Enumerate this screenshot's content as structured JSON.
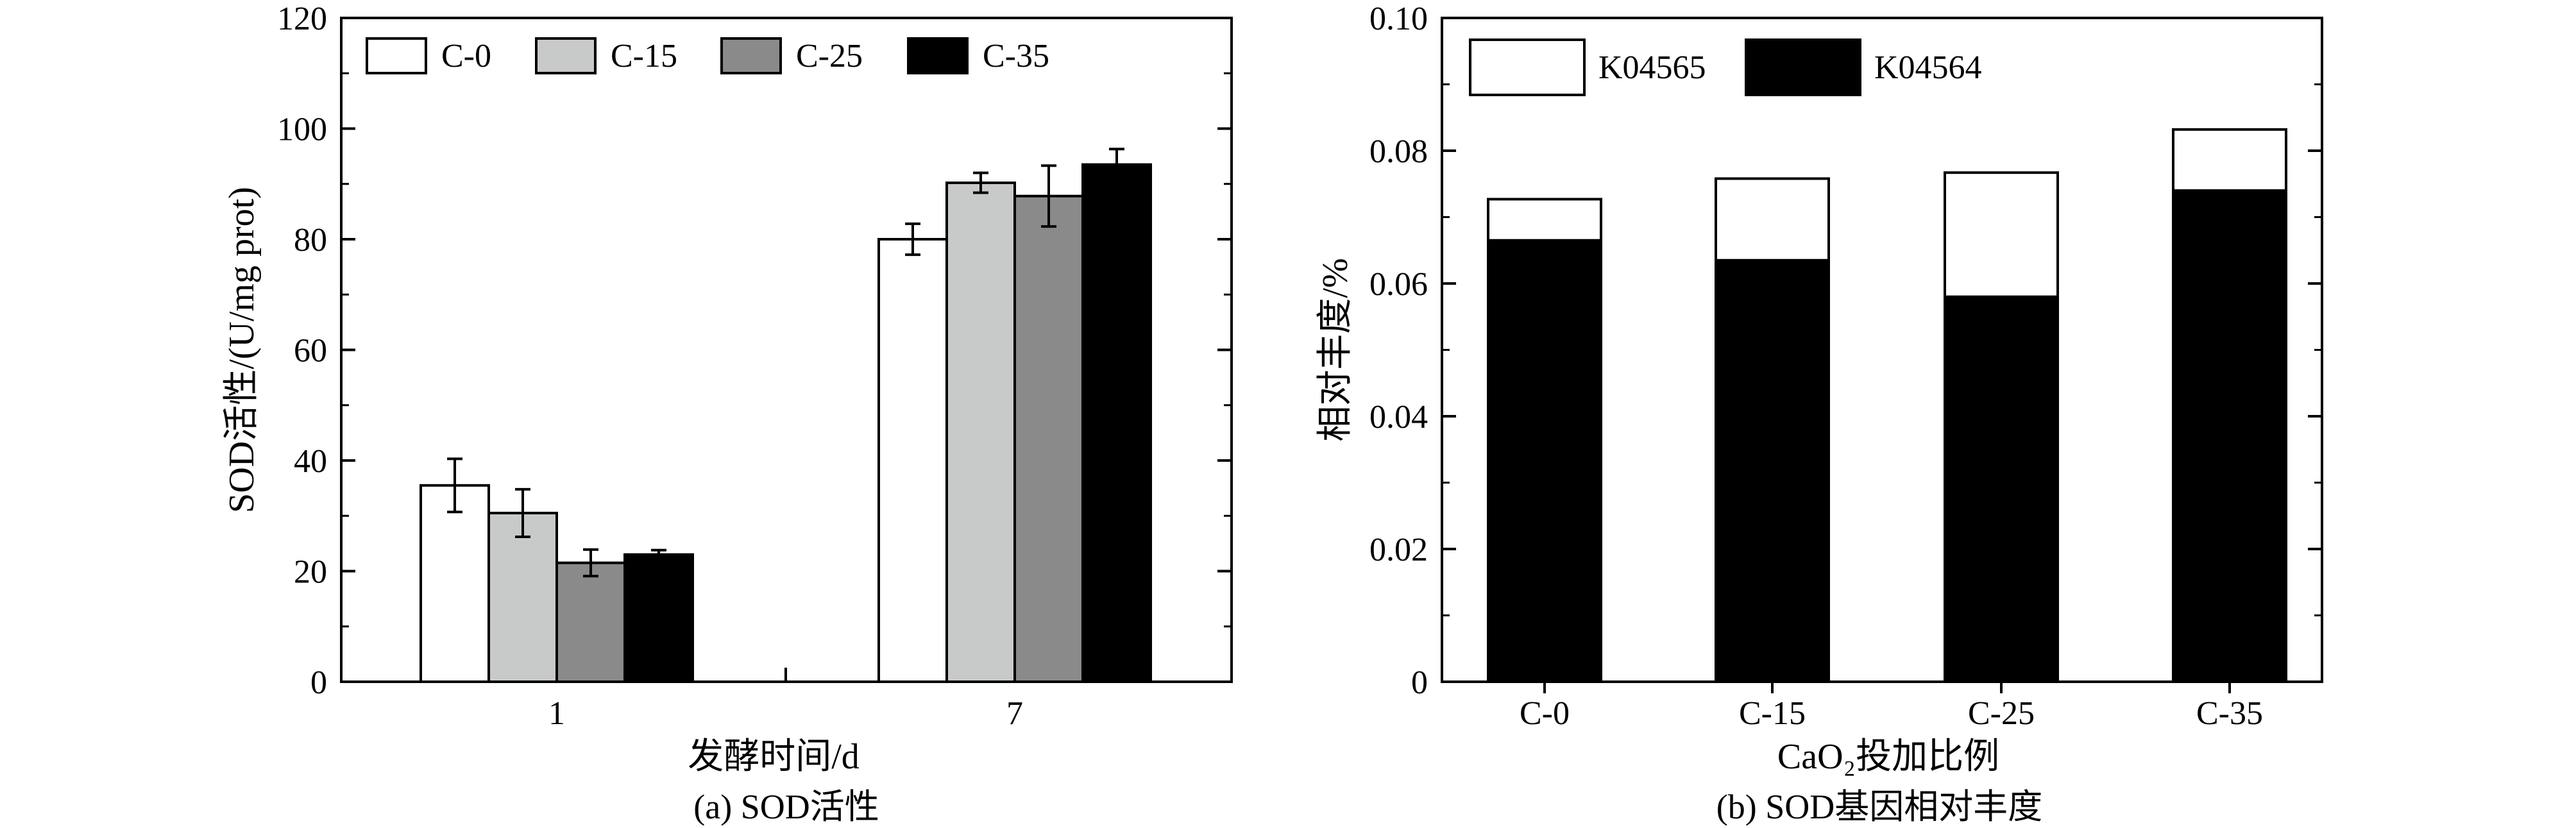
{
  "figure": {
    "left_caption": "(a) SOD活性",
    "right_caption": "(b) SOD基因相对丰度"
  },
  "chart_data": [
    {
      "type": "bar",
      "xlabel": "发酵时间/d",
      "ylabel": "SOD活性/(U/mg prot)",
      "categories": [
        "1",
        "7"
      ],
      "ylim": [
        0,
        120
      ],
      "yticks": [
        0,
        20,
        40,
        60,
        80,
        100,
        120
      ],
      "legend_position": "top-left",
      "series": [
        {
          "name": "C-0",
          "color": "#ffffff",
          "values": [
            35.5,
            80.0
          ],
          "errors": [
            4.8,
            2.8
          ]
        },
        {
          "name": "C-15",
          "color": "#c8c9c9",
          "values": [
            30.5,
            90.2
          ],
          "errors": [
            4.3,
            1.8
          ]
        },
        {
          "name": "C-25",
          "color": "#8a8a8a",
          "values": [
            21.5,
            87.8
          ],
          "errors": [
            2.4,
            5.5
          ]
        },
        {
          "name": "C-35",
          "color": "#000000",
          "values": [
            23.0,
            93.5
          ],
          "errors": [
            0.8,
            2.8
          ]
        }
      ]
    },
    {
      "type": "bar",
      "stacked": true,
      "xlabel": "CaO₂投加比例",
      "ylabel": "相对丰度/%",
      "categories": [
        "C-0",
        "C-15",
        "C-25",
        "C-35"
      ],
      "ylim": [
        0,
        0.1
      ],
      "yticks": [
        "0",
        "0.02",
        "0.04",
        "0.06",
        "0.08",
        "0.10"
      ],
      "legend_position": "top-left",
      "series": [
        {
          "name": "K04564",
          "color": "#000000",
          "values": [
            0.0665,
            0.0635,
            0.058,
            0.074
          ]
        },
        {
          "name": "K04565",
          "color": "#ffffff",
          "values": [
            0.0062,
            0.0123,
            0.0187,
            0.0092
          ]
        }
      ]
    }
  ]
}
